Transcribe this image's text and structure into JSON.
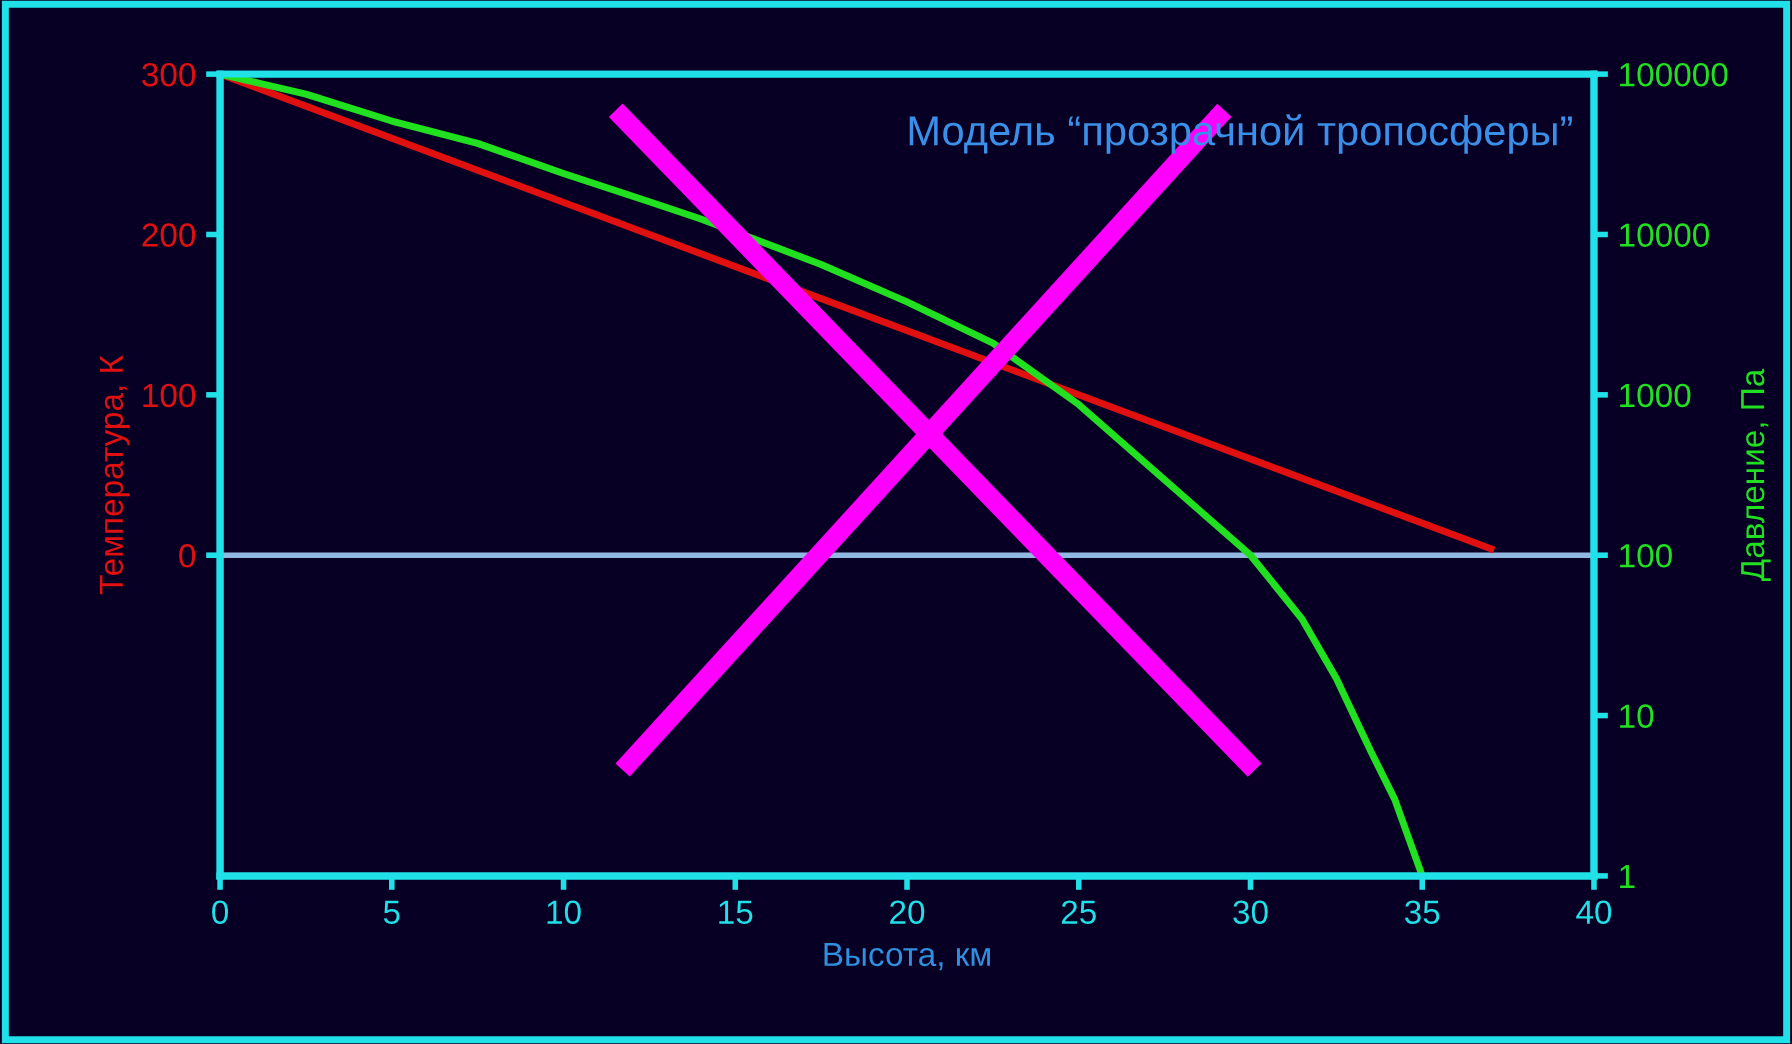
{
  "chart_data": {
    "type": "line",
    "title": "Модель “прозрачной тропосферы”",
    "xlabel": "Высота, км",
    "ylabel": "Температура, К",
    "y2label": "Давление, Па",
    "xlim": [
      0,
      40
    ],
    "xticks": [
      0,
      5,
      10,
      15,
      20,
      25,
      30,
      35,
      40
    ],
    "ylim": [
      -200,
      300
    ],
    "yticks": [
      0,
      100,
      200,
      300
    ],
    "log": "y2",
    "y2lim": [
      1,
      100000
    ],
    "y2ticks": [
      1,
      10,
      100,
      1000,
      10000,
      100000
    ],
    "grid": false,
    "marker": "none",
    "line_style": "solid",
    "series": [
      {
        "color": "#e01010",
        "x": [
          0,
          37
        ],
        "values": [
          300,
          4
        ]
      },
      {
        "color": "#20e020",
        "axis": "y2",
        "x": [
          0,
          2.5,
          5,
          7.5,
          10,
          12.5,
          14,
          17.5,
          20,
          22.5,
          25,
          27.5,
          30,
          31.5,
          32.5,
          33.5,
          34.2,
          35
        ],
        "values": [
          100000,
          75000,
          51000,
          37000,
          24000,
          16000,
          12500,
          6500,
          3800,
          2100,
          870,
          295,
          100,
          40,
          17,
          6,
          3,
          1
        ]
      }
    ],
    "ref_lines": [
      {
        "axis": "y",
        "value": 0,
        "color": "#90b8e0"
      }
    ]
  }
}
